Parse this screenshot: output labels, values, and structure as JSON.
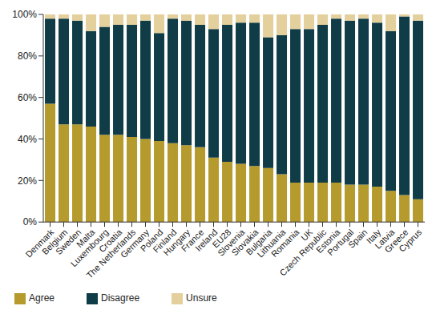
{
  "chart_data": {
    "type": "bar",
    "stacked": true,
    "grid": false,
    "legend": "bottom",
    "categories": [
      "Denmark",
      "Belgium",
      "Sweden",
      "Malta",
      "Luxembourg",
      "Croatia",
      "The Netherlands",
      "Germany",
      "Poland",
      "Finland",
      "Hungary",
      "France",
      "Ireland",
      "EU28",
      "Slovenia",
      "Slovakia",
      "Bulgaria",
      "Lithuania",
      "Romania",
      "UK",
      "Czech Republic",
      "Estonia",
      "Portugal",
      "Spain",
      "Italy",
      "Latvia",
      "Greece",
      "Cyprus"
    ],
    "series": [
      {
        "name": "Agree",
        "color": "#b59a2e",
        "values": [
          57,
          47,
          47,
          46,
          42,
          42,
          41,
          40,
          39,
          38,
          37,
          36,
          31,
          29,
          28,
          27,
          26,
          23,
          19,
          19,
          19,
          19,
          18,
          18,
          17,
          15,
          13,
          11
        ]
      },
      {
        "name": "Disagree",
        "color": "#0f3c46",
        "values": [
          41,
          51,
          50,
          46,
          52,
          53,
          54,
          57,
          52,
          60,
          60,
          59,
          62,
          66,
          68,
          69,
          63,
          67,
          74,
          74,
          76,
          79,
          79,
          80,
          79,
          77,
          86,
          86
        ]
      },
      {
        "name": "Unsure",
        "color": "#e3d09c",
        "values": [
          2,
          2,
          3,
          8,
          6,
          5,
          5,
          3,
          9,
          2,
          3,
          5,
          7,
          5,
          4,
          4,
          11,
          10,
          7,
          7,
          5,
          2,
          3,
          2,
          4,
          8,
          1,
          3
        ]
      }
    ],
    "ylim": [
      0,
      100
    ],
    "yticks": [
      {
        "value": 0,
        "label": "0%"
      },
      {
        "value": 20,
        "label": "20%"
      },
      {
        "value": 40,
        "label": "40%"
      },
      {
        "value": 60,
        "label": "60%"
      },
      {
        "value": 80,
        "label": "80%"
      },
      {
        "value": 100,
        "label": "100%"
      }
    ]
  }
}
